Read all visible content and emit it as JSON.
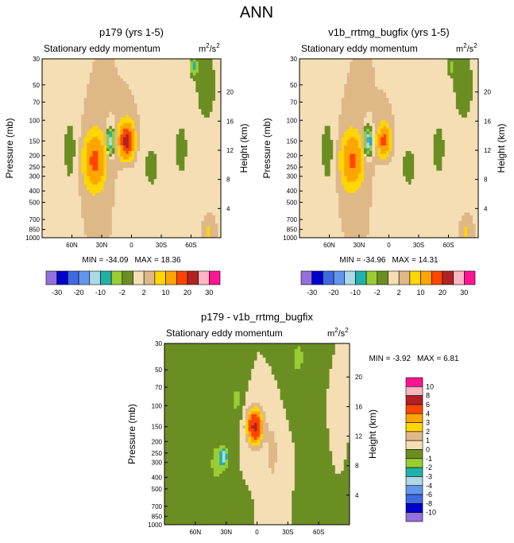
{
  "page_title": "ANN",
  "colors": {
    "scale": [
      "#9370db",
      "#0000cd",
      "#4169e1",
      "#6495ed",
      "#add8e6",
      "#20b2aa",
      "#9acd32",
      "#6b8e23",
      "#f5deb3",
      "#deb887",
      "#ffd700",
      "#ffa500",
      "#ff4500",
      "#b22222",
      "#ffb6c1",
      "#ff1493"
    ],
    "min_color": "#9370db"
  },
  "chart_data": [
    {
      "type": "heatmap",
      "panel": "top-left",
      "title": "p179 (yrs 1-5)",
      "subtitle": "Stationary eddy momentum",
      "units_base": "m",
      "units_sup1": "2",
      "units_mid": "/s",
      "units_sup2": "2",
      "xlabel": "",
      "ylabel": "Pressure (mb)",
      "y2label": "Height (km)",
      "x_ticks": [
        "60N",
        "30N",
        "0",
        "30S",
        "60S"
      ],
      "x_values": [
        60,
        30,
        0,
        -30,
        -60
      ],
      "xlim": [
        90,
        -90
      ],
      "y_ticks": [
        "30",
        "50",
        "70",
        "100",
        "150",
        "200",
        "250",
        "300",
        "400",
        "500",
        "700",
        "850",
        "1000"
      ],
      "y_values": [
        30,
        50,
        70,
        100,
        150,
        200,
        250,
        300,
        400,
        500,
        700,
        850,
        1000
      ],
      "ylim": [
        1000,
        30
      ],
      "y2_ticks": [
        "4",
        "8",
        "12",
        "16",
        "20"
      ],
      "y2_values": [
        4,
        8,
        12,
        16,
        20
      ],
      "min_label": "MIN = -34.09",
      "max_label": "MAX =  18.36",
      "min": -34.09,
      "max": 18.36,
      "features": [
        {
          "lat": 5,
          "p": 150,
          "value": 18,
          "sx": 7,
          "sy": 0.33
        },
        {
          "lat": 37,
          "p": 220,
          "value": 12,
          "sx": 10,
          "sy": 0.5
        },
        {
          "lat": 21,
          "p": 150,
          "value": -18,
          "sx": 3.5,
          "sy": 0.22
        },
        {
          "lat": 62,
          "p": 180,
          "value": -3,
          "sx": 8,
          "sy": 0.8
        },
        {
          "lat": 5,
          "p": 400,
          "value": -2,
          "sx": 6,
          "sy": 0.6
        },
        {
          "lat": -20,
          "p": 250,
          "value": -2.5,
          "sx": 12,
          "sy": 0.7
        },
        {
          "lat": -50,
          "p": 180,
          "value": -2.5,
          "sx": 10,
          "sy": 0.9
        },
        {
          "lat": -75,
          "p": 50,
          "value": -3,
          "sx": 14,
          "sy": 1.0
        },
        {
          "lat": -63,
          "p": 35,
          "value": -12,
          "sx": 3.5,
          "sy": 0.15
        },
        {
          "lat": 75,
          "p": 600,
          "value": -1.5,
          "sx": 10,
          "sy": 0.5
        },
        {
          "lat": -78,
          "p": 900,
          "value": 3,
          "sx": 3,
          "sy": 0.15
        }
      ]
    },
    {
      "type": "heatmap",
      "panel": "top-right",
      "title": "v1b_rrtmg_bugfix (yrs 1-5)",
      "subtitle": "Stationary eddy momentum",
      "units_base": "m",
      "units_sup1": "2",
      "units_mid": "/s",
      "units_sup2": "2",
      "xlabel": "",
      "ylabel": "Pressure (mb)",
      "y2label": "Height (km)",
      "x_ticks": [
        "60N",
        "30N",
        "0",
        "30S",
        "60S"
      ],
      "x_values": [
        60,
        30,
        0,
        -30,
        -60
      ],
      "xlim": [
        90,
        -90
      ],
      "y_ticks": [
        "30",
        "50",
        "70",
        "100",
        "150",
        "200",
        "250",
        "300",
        "400",
        "500",
        "700",
        "850",
        "1000"
      ],
      "y_values": [
        30,
        50,
        70,
        100,
        150,
        200,
        250,
        300,
        400,
        500,
        700,
        850,
        1000
      ],
      "ylim": [
        1000,
        30
      ],
      "y2_ticks": [
        "4",
        "8",
        "12",
        "16",
        "20"
      ],
      "y2_values": [
        4,
        8,
        12,
        16,
        20
      ],
      "min_label": "MIN = -34.96",
      "max_label": "MAX =  14.31",
      "min": -34.96,
      "max": 14.31,
      "features": [
        {
          "lat": 5,
          "p": 150,
          "value": 12,
          "sx": 6,
          "sy": 0.3
        },
        {
          "lat": 37,
          "p": 220,
          "value": 11,
          "sx": 10,
          "sy": 0.5
        },
        {
          "lat": 21,
          "p": 150,
          "value": -22,
          "sx": 3.5,
          "sy": 0.22
        },
        {
          "lat": 62,
          "p": 180,
          "value": -3,
          "sx": 8,
          "sy": 0.8
        },
        {
          "lat": 5,
          "p": 400,
          "value": -2,
          "sx": 6,
          "sy": 0.6
        },
        {
          "lat": -20,
          "p": 250,
          "value": -2.5,
          "sx": 12,
          "sy": 0.7
        },
        {
          "lat": -50,
          "p": 180,
          "value": -2.5,
          "sx": 10,
          "sy": 0.9
        },
        {
          "lat": -75,
          "p": 50,
          "value": -3,
          "sx": 14,
          "sy": 1.0
        },
        {
          "lat": -63,
          "p": 35,
          "value": -6,
          "sx": 3.5,
          "sy": 0.15
        },
        {
          "lat": 75,
          "p": 600,
          "value": -1.5,
          "sx": 10,
          "sy": 0.5
        },
        {
          "lat": -78,
          "p": 900,
          "value": 3,
          "sx": 3,
          "sy": 0.15
        }
      ]
    },
    {
      "type": "heatmap",
      "panel": "bottom",
      "title": "p179 - v1b_rrtmg_bugfix",
      "subtitle": "Stationary eddy momentum",
      "units_base": "m",
      "units_sup1": "2",
      "units_mid": "/s",
      "units_sup2": "2",
      "xlabel": "",
      "ylabel": "Pressure (mb)",
      "y2label": "Height (km)",
      "x_ticks": [
        "60N",
        "30N",
        "0",
        "30S",
        "60S"
      ],
      "x_values": [
        60,
        30,
        0,
        -30,
        -60
      ],
      "xlim": [
        90,
        -90
      ],
      "y_ticks": [
        "30",
        "50",
        "70",
        "100",
        "150",
        "200",
        "250",
        "300",
        "400",
        "500",
        "700",
        "850",
        "1000"
      ],
      "y_values": [
        30,
        50,
        70,
        100,
        150,
        200,
        250,
        300,
        400,
        500,
        700,
        850,
        1000
      ],
      "ylim": [
        1000,
        30
      ],
      "y2_ticks": [
        "4",
        "8",
        "12",
        "16",
        "20"
      ],
      "y2_values": [
        4,
        8,
        12,
        16,
        20
      ],
      "min_label": "MIN =  -3.92",
      "max_label": "MAX =   6.81",
      "min": -3.92,
      "max": 6.81,
      "features": [
        {
          "lat": 2,
          "p": 150,
          "value": 6.5,
          "sx": 8,
          "sy": 0.35
        },
        {
          "lat": 32,
          "p": 270,
          "value": -3.2,
          "sx": 3.5,
          "sy": 0.18
        },
        {
          "lat": 38,
          "p": 300,
          "value": -1.5,
          "sx": 7,
          "sy": 0.4
        },
        {
          "lat": 20,
          "p": 90,
          "value": -1.2,
          "sx": 6,
          "sy": 0.5
        },
        {
          "lat": -15,
          "p": 250,
          "value": 1.5,
          "sx": 6,
          "sy": 0.6
        },
        {
          "lat": 65,
          "p": 350,
          "value": -1,
          "sx": 18,
          "sy": 0.8
        },
        {
          "lat": -40,
          "p": 40,
          "value": -1.2,
          "sx": 10,
          "sy": 0.5
        },
        {
          "lat": -70,
          "p": 600,
          "value": -0.8,
          "sx": 10,
          "sy": 0.6
        },
        {
          "lat": -78,
          "p": 200,
          "value": 1,
          "sx": 4,
          "sy": 0.5
        }
      ]
    }
  ],
  "colorbar_top_left": {
    "orientation": "horizontal",
    "labels": [
      "-30",
      "-20",
      "-10",
      "-2",
      "2",
      "10",
      "20",
      "30"
    ],
    "levels": [
      -35,
      -30,
      -25,
      -20,
      -15,
      -10,
      -5,
      -2,
      0,
      2,
      5,
      10,
      15,
      20,
      25,
      30
    ]
  },
  "colorbar_top_right": {
    "orientation": "horizontal",
    "labels": [
      "-30",
      "-20",
      "-10",
      "-2",
      "2",
      "10",
      "20",
      "30"
    ],
    "levels": [
      -35,
      -30,
      -25,
      -20,
      -15,
      -10,
      -5,
      -2,
      0,
      2,
      5,
      10,
      15,
      20,
      25,
      30
    ]
  },
  "colorbar_diff": {
    "orientation": "vertical",
    "labels": [
      "10",
      "8",
      "6",
      "4",
      "3",
      "2",
      "1",
      "0",
      "-1",
      "-2",
      "-3",
      "-4",
      "-6",
      "-8",
      "-10"
    ],
    "levels": [
      -10,
      -8,
      -6,
      -4,
      -3,
      -2,
      -1,
      0,
      1,
      2,
      3,
      4,
      6,
      8,
      10
    ]
  }
}
